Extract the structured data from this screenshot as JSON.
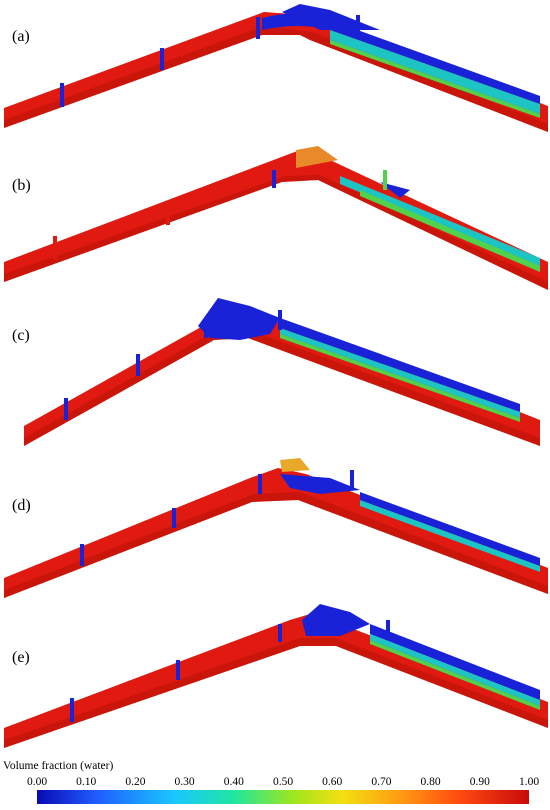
{
  "panels": [
    {
      "label": "(a)"
    },
    {
      "label": "(b)"
    },
    {
      "label": "(c)"
    },
    {
      "label": "(d)"
    },
    {
      "label": "(e)"
    }
  ],
  "colorbar": {
    "title": "Volume fraction (water)",
    "ticks": [
      "0.00",
      "0.10",
      "0.20",
      "0.30",
      "0.40",
      "0.50",
      "0.60",
      "0.70",
      "0.80",
      "0.90",
      "1.00"
    ],
    "colors": [
      "#0a0ab4",
      "#1f5cff",
      "#19c8ff",
      "#20e6a0",
      "#9ee61e",
      "#f2e012",
      "#ff9a12",
      "#ff4a10",
      "#c80a0a"
    ]
  },
  "colors": {
    "pipe": "#e01a10",
    "pipe_shade": "#b81208",
    "water": "#1a22d8",
    "teal": "#1cc4c4",
    "green": "#52d24a"
  }
}
